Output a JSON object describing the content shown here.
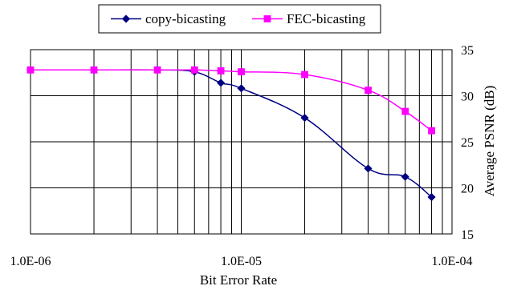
{
  "chart_data": {
    "type": "line",
    "title": "",
    "xlabel": "Bit Error Rate",
    "ylabel": "Average PSNR (dB)",
    "x_scale": "log",
    "xlim": [
      1e-06,
      0.0001
    ],
    "ylim": [
      15,
      35
    ],
    "x_ticks": [
      {
        "value": 1e-06,
        "label": "1.0E-06"
      },
      {
        "value": 1e-05,
        "label": "1.0E-05"
      },
      {
        "value": 0.0001,
        "label": "1.0E-04"
      }
    ],
    "y_ticks": [
      {
        "value": 15,
        "label": "15"
      },
      {
        "value": 20,
        "label": "20"
      },
      {
        "value": 25,
        "label": "25"
      },
      {
        "value": 30,
        "label": "30"
      },
      {
        "value": 35,
        "label": "35"
      }
    ],
    "grid": true,
    "y_axis_side": "right",
    "legend_position": "top-center",
    "series": [
      {
        "name": "copy-bicasting",
        "color": "#000080",
        "marker": "diamond",
        "x": [
          1e-06,
          2e-06,
          4e-06,
          6e-06,
          8e-06,
          1e-05,
          2e-05,
          4e-05,
          6e-05,
          8e-05
        ],
        "y": [
          32.8,
          32.8,
          32.8,
          32.6,
          31.4,
          30.8,
          27.6,
          22.1,
          21.2,
          19.0
        ]
      },
      {
        "name": "FEC-bicasting",
        "color": "#ff00ff",
        "marker": "square",
        "x": [
          1e-06,
          2e-06,
          4e-06,
          6e-06,
          8e-06,
          1e-05,
          2e-05,
          4e-05,
          6e-05,
          8e-05
        ],
        "y": [
          32.8,
          32.8,
          32.8,
          32.8,
          32.7,
          32.6,
          32.3,
          30.6,
          28.3,
          26.2
        ]
      }
    ]
  }
}
